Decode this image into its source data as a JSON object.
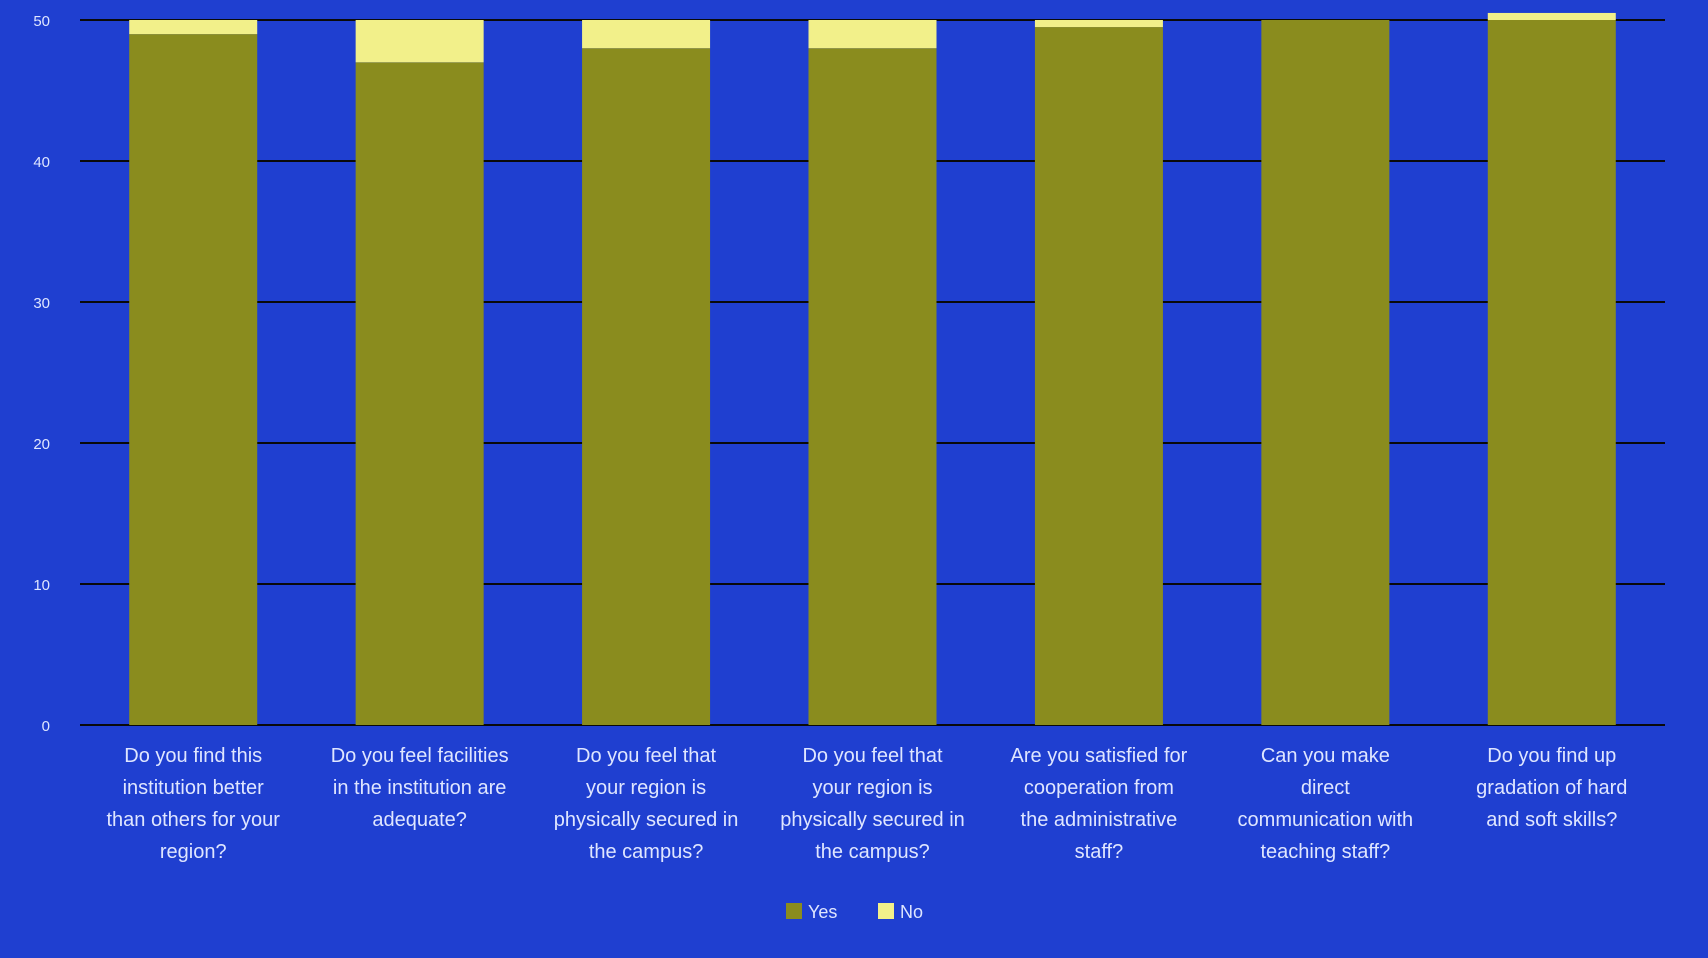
{
  "colors": {
    "background": "#1f3fd0",
    "gridline": "#0a0a0a",
    "yes": "#8a8c1e",
    "no": "#f2f08a",
    "label_text": "#dfe6ff"
  },
  "chart_data": {
    "type": "bar",
    "stacked": true,
    "title": "",
    "xlabel": "",
    "ylabel": "",
    "ylim": [
      0,
      50
    ],
    "yticks": [
      "0",
      "10",
      "20",
      "30",
      "40",
      "50"
    ],
    "grid": true,
    "legend_position": "bottom-center",
    "categories": [
      "Do you find this institution better than others for your region?",
      "Do you feel facilities in the institution are adequate?",
      "Do you feel that your region is physically secured in the campus?",
      "Do you feel that your region is physically secured in the campus?",
      "Are you satisfied for cooperation from the administrative staff?",
      "Can you make direct communication with teaching staff?",
      "Do you find up gradation of hard and soft skills?"
    ],
    "category_lines": [
      [
        "Do you find this",
        "institution better",
        "than others for your",
        "region?"
      ],
      [
        "Do you feel facilities",
        "in the institution are",
        "adequate?"
      ],
      [
        "Do you feel that",
        "your region is",
        "physically secured in",
        "the campus?"
      ],
      [
        "Do you feel that",
        "your region is",
        "physically secured in",
        "the campus?"
      ],
      [
        "Are you satisfied for",
        "cooperation from",
        "the administrative",
        "staff?"
      ],
      [
        "Can you make",
        "direct",
        "communication with",
        "teaching staff?"
      ],
      [
        "Do you find up",
        "gradation of hard",
        "and soft skills?"
      ]
    ],
    "series": [
      {
        "name": "Yes",
        "values": [
          49,
          47,
          48,
          48,
          49.5,
          50,
          50
        ]
      },
      {
        "name": "No",
        "values": [
          1,
          3,
          2,
          2,
          0.5,
          0,
          0.5
        ]
      }
    ]
  }
}
